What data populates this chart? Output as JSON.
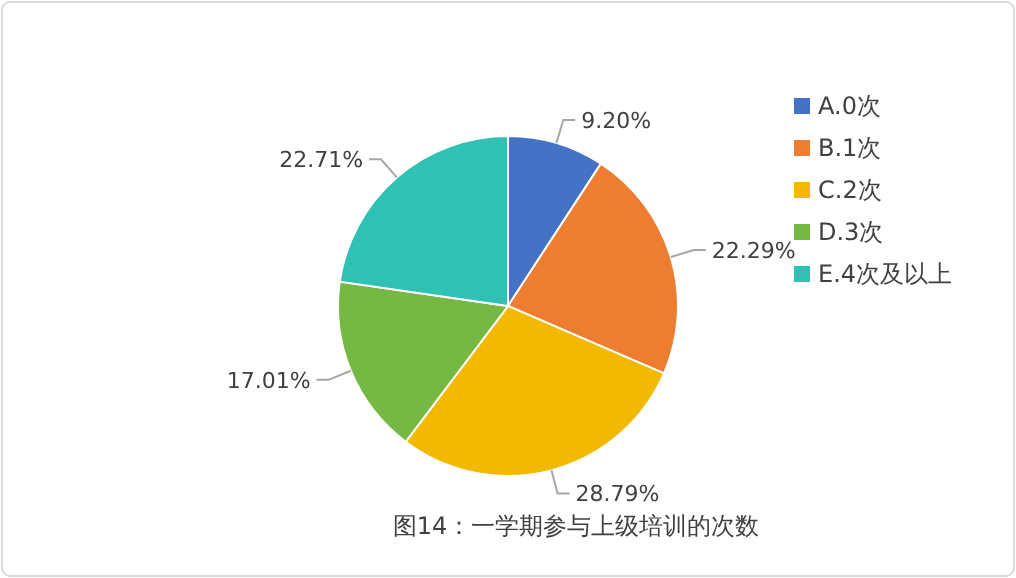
{
  "chart_data": {
    "type": "pie",
    "title": "图14：一学期参与上级培训的次数",
    "categories": [
      "A.0次",
      "B.1次",
      "C.2次",
      "D.3次",
      "E.4次及以上"
    ],
    "values": [
      9.2,
      22.29,
      28.79,
      17.01,
      22.71
    ],
    "value_labels": [
      "9.20%",
      "22.29%",
      "28.79%",
      "17.01%",
      "22.71%"
    ],
    "colors": [
      "#4472c4",
      "#ed7d31",
      "#f2b900",
      "#75b843",
      "#2ec1b4"
    ],
    "legend": "right"
  }
}
